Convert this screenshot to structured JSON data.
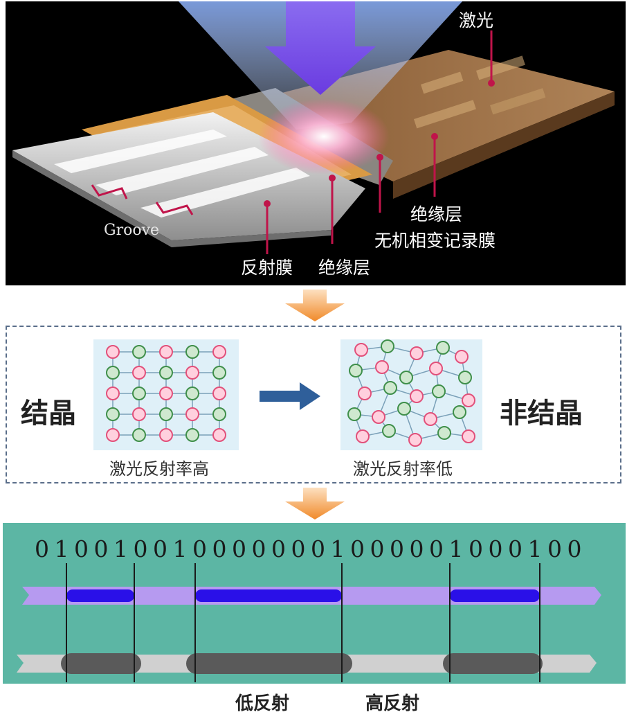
{
  "top": {
    "labels": {
      "laser": "激光",
      "insulation_right": "绝缘层",
      "recording_film": "无机相变记录膜",
      "reflective_film": "反射膜",
      "insulation_bottom": "绝缘层",
      "groove": "Groove"
    }
  },
  "middle": {
    "left_label": "结晶",
    "right_label": "非结晶",
    "left_caption": "激光反射率高",
    "right_caption": "激光反射率低"
  },
  "bottom": {
    "bits": [
      "0",
      "1",
      "0",
      "0",
      "1",
      "0",
      "0",
      "1",
      "0",
      "0",
      "0",
      "0",
      "0",
      "0",
      "0",
      "1",
      "0",
      "0",
      "0",
      "0",
      "0",
      "1",
      "0",
      "0",
      "0",
      "1",
      "0",
      "0"
    ],
    "caption_low": "低反射",
    "caption_high": "高反射"
  },
  "colors": {
    "callout_line": "#c0144a",
    "arrow_orange": "#f4a04a",
    "arrow_blue": "#2f5f9a",
    "atom_pink": "#e2507a",
    "atom_green": "#3f8f4a",
    "panel_teal": "#5cb6a4",
    "mark_blue": "#2a10e8",
    "track_violet": "#b69af0"
  }
}
